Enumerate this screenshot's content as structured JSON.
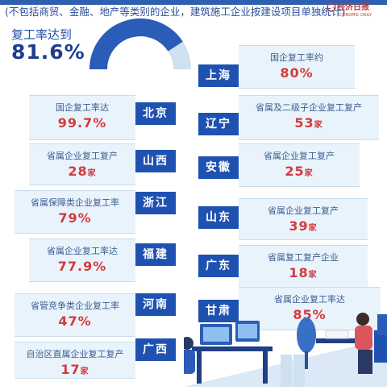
{
  "header": {
    "subtitle": "(不包括商贸、金融、地产等类别的企业，建筑施工企业按建设项目单独统计)",
    "logo_text": "经济日报",
    "logo_subtext": "ECONOMIC DAILY"
  },
  "overview": {
    "label": "复工率达到",
    "value": "81.6%",
    "gauge_fraction": 0.816,
    "colors": {
      "filled": "#2a5cb8",
      "empty": "#cfe0f0"
    }
  },
  "colors": {
    "accent": "#1f52b0",
    "value_red": "#d43a3d",
    "card_bg": "#e9f3fb"
  },
  "regions": {
    "shanghai": {
      "name": "上海",
      "label": "国企复工率约",
      "value": "80%",
      "unit": ""
    },
    "beijing": {
      "name": "北京",
      "label": "国企复工率达",
      "value": "99.7%",
      "unit": ""
    },
    "liaoning": {
      "name": "辽宁",
      "label": "省属及二级子企业复工复产",
      "value": "53",
      "unit": "家"
    },
    "shanxi": {
      "name": "山西",
      "label": "省属企业复工复产",
      "value": "28",
      "unit": "家"
    },
    "anhui": {
      "name": "安徽",
      "label": "省属企业复工复产",
      "value": "25",
      "unit": "家"
    },
    "zhejiang": {
      "name": "浙江",
      "label": "省属保障类企业复工率",
      "value": "79%",
      "unit": ""
    },
    "shandong": {
      "name": "山东",
      "label": "省属企业复工复产",
      "value": "39",
      "unit": "家"
    },
    "fujian": {
      "name": "福建",
      "label": "省属企业复工率达",
      "value": "77.9%",
      "unit": ""
    },
    "guangdong": {
      "name": "广东",
      "label": "省属复工复产企业",
      "value": "18",
      "unit": "家"
    },
    "henan": {
      "name": "河南",
      "label": "省管竞争类企业复工率",
      "value": "47%",
      "unit": ""
    },
    "gansu": {
      "name": "甘肃",
      "label": "省属企业复工率达",
      "value": "85%",
      "unit": ""
    },
    "guangxi": {
      "name": "广西",
      "label": "自治区直属企业复工复产",
      "value": "17",
      "unit": "家"
    }
  }
}
